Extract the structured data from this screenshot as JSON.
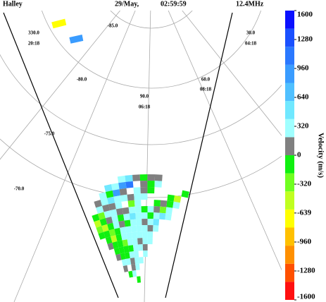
{
  "header": {
    "station": "Halley",
    "date": "29/May,",
    "time": "02:59:59",
    "frequency": "12.4MHz"
  },
  "chart_data": {
    "type": "fan",
    "grid_labels": [
      "330.0",
      "20:18",
      "-85.0",
      "30.0",
      "04:18",
      "-80.0",
      "60.0",
      "08:18",
      "90.0",
      "06:18",
      "-75.0",
      "-70.0"
    ],
    "colorbar": {
      "title": "Velocity (m/s)",
      "lim": [
        -1600,
        1600
      ],
      "ticks": [
        1600,
        1280,
        960,
        640,
        320,
        0,
        -320,
        -639,
        -960,
        -1280,
        -1600
      ],
      "colors": [
        "#ff1010",
        "#ff5000",
        "#ff9000",
        "#ffc000",
        "#ffff00",
        "#c0ff20",
        "#70ff20",
        "#10f010",
        "#808080",
        "#a0ffff",
        "#70e8ff",
        "#50c0ff",
        "#3a9cff",
        "#2a78ff",
        "#1a50ff",
        "#0a10ff"
      ]
    },
    "cells": [
      [
        3,
        45,
        -700
      ],
      [
        4,
        42,
        900
      ],
      [
        6,
        19,
        300
      ],
      [
        7,
        19,
        450
      ],
      [
        8,
        19,
        50
      ],
      [
        9,
        19,
        -100
      ],
      [
        10,
        19,
        50
      ],
      [
        11,
        19,
        50
      ],
      [
        4,
        18,
        500
      ],
      [
        5,
        18,
        300
      ],
      [
        6,
        18,
        950
      ],
      [
        7,
        18,
        1100
      ],
      [
        9,
        18,
        50
      ],
      [
        10,
        18,
        -80
      ],
      [
        11,
        18,
        300
      ],
      [
        3,
        17,
        300
      ],
      [
        4,
        17,
        -150
      ],
      [
        5,
        17,
        950
      ],
      [
        6,
        17,
        50
      ],
      [
        8,
        17,
        300
      ],
      [
        9,
        17,
        50
      ],
      [
        10,
        17,
        -80
      ],
      [
        15,
        17,
        -150
      ],
      [
        2,
        16,
        50
      ],
      [
        3,
        16,
        300
      ],
      [
        4,
        16,
        500
      ],
      [
        5,
        16,
        300
      ],
      [
        6,
        16,
        300
      ],
      [
        7,
        16,
        50
      ],
      [
        8,
        16,
        300
      ],
      [
        9,
        16,
        300
      ],
      [
        13,
        16,
        -120
      ],
      [
        14,
        16,
        -500
      ],
      [
        2,
        15,
        300
      ],
      [
        3,
        15,
        50
      ],
      [
        4,
        15,
        50
      ],
      [
        5,
        15,
        300
      ],
      [
        7,
        15,
        -250
      ],
      [
        8,
        15,
        300
      ],
      [
        11,
        15,
        -100
      ],
      [
        12,
        15,
        50
      ],
      [
        13,
        15,
        -150
      ],
      [
        14,
        15,
        300
      ],
      [
        1,
        14,
        -150
      ],
      [
        2,
        14,
        -250
      ],
      [
        3,
        14,
        300
      ],
      [
        4,
        14,
        300
      ],
      [
        5,
        14,
        50
      ],
      [
        6,
        14,
        50
      ],
      [
        7,
        14,
        300
      ],
      [
        8,
        14,
        300
      ],
      [
        9,
        14,
        -150
      ],
      [
        10,
        14,
        300
      ],
      [
        11,
        14,
        50
      ],
      [
        12,
        14,
        -300
      ],
      [
        13,
        14,
        300
      ],
      [
        1,
        13,
        -450
      ],
      [
        2,
        13,
        -150
      ],
      [
        3,
        13,
        50
      ],
      [
        4,
        13,
        300
      ],
      [
        5,
        13,
        -150
      ],
      [
        6,
        13,
        300
      ],
      [
        7,
        13,
        500
      ],
      [
        8,
        13,
        300
      ],
      [
        9,
        13,
        300
      ],
      [
        10,
        13,
        -100
      ],
      [
        11,
        13,
        300
      ],
      [
        12,
        13,
        500
      ],
      [
        13,
        13,
        300
      ],
      [
        1,
        12,
        -250
      ],
      [
        2,
        12,
        -450
      ],
      [
        3,
        12,
        -150
      ],
      [
        4,
        12,
        300
      ],
      [
        5,
        12,
        50
      ],
      [
        6,
        12,
        -150
      ],
      [
        7,
        12,
        300
      ],
      [
        8,
        12,
        300
      ],
      [
        9,
        12,
        50
      ],
      [
        10,
        12,
        300
      ],
      [
        11,
        12,
        500
      ],
      [
        1,
        11,
        -150
      ],
      [
        2,
        11,
        -150
      ],
      [
        3,
        11,
        -250
      ],
      [
        4,
        11,
        -100
      ],
      [
        5,
        11,
        300
      ],
      [
        6,
        11,
        300
      ],
      [
        7,
        11,
        300
      ],
      [
        8,
        11,
        300
      ],
      [
        9,
        11,
        300
      ],
      [
        10,
        11,
        50
      ],
      [
        11,
        11,
        300
      ],
      [
        2,
        10,
        -150
      ],
      [
        3,
        10,
        -450
      ],
      [
        4,
        10,
        -150
      ],
      [
        5,
        10,
        300
      ],
      [
        6,
        10,
        300
      ],
      [
        7,
        10,
        300
      ],
      [
        8,
        10,
        300
      ],
      [
        9,
        10,
        300
      ],
      [
        10,
        10,
        300
      ],
      [
        2,
        9,
        50
      ],
      [
        3,
        9,
        -150
      ],
      [
        4,
        9,
        -150
      ],
      [
        5,
        9,
        -250
      ],
      [
        6,
        9,
        300
      ],
      [
        7,
        9,
        300
      ],
      [
        8,
        9,
        50
      ],
      [
        9,
        9,
        300
      ],
      [
        10,
        9,
        300
      ],
      [
        3,
        8,
        -150
      ],
      [
        4,
        8,
        -150
      ],
      [
        5,
        8,
        -150
      ],
      [
        6,
        8,
        -150
      ],
      [
        7,
        8,
        300
      ],
      [
        8,
        8,
        300
      ],
      [
        9,
        8,
        50
      ],
      [
        3,
        7,
        50
      ],
      [
        4,
        7,
        -150
      ],
      [
        5,
        7,
        -150
      ],
      [
        6,
        7,
        300
      ],
      [
        7,
        7,
        300
      ],
      [
        9,
        7,
        300
      ],
      [
        4,
        6,
        300
      ],
      [
        5,
        6,
        300
      ],
      [
        6,
        6,
        50
      ],
      [
        7,
        6,
        300
      ],
      [
        8,
        6,
        300
      ],
      [
        4,
        5,
        50
      ],
      [
        6,
        5,
        50
      ],
      [
        7,
        5,
        300
      ],
      [
        5,
        4,
        -150
      ],
      [
        6,
        4,
        300
      ],
      [
        7,
        3,
        -150
      ]
    ]
  }
}
